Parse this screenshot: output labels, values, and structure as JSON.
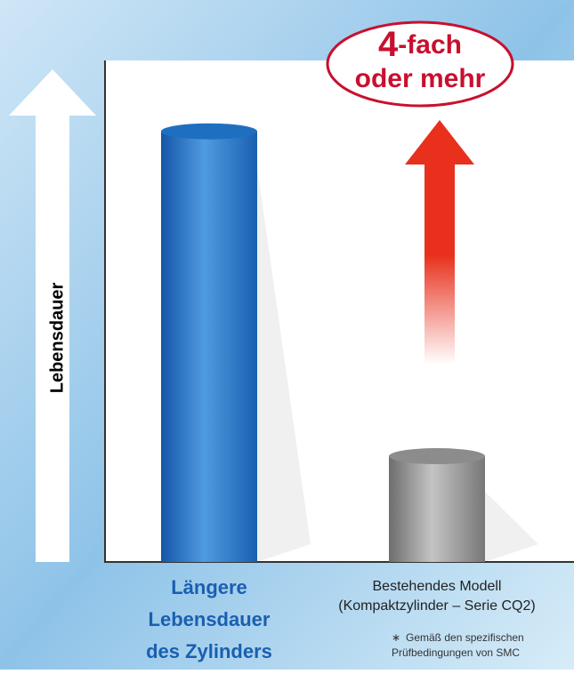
{
  "chart_data": {
    "type": "bar",
    "y_label": "Lebensdauer",
    "categories": [
      [
        "Längere",
        "Lebensdauer",
        "des Zylinders"
      ],
      [
        "Bestehendes Modell",
        "(Kompaktzylinder – Serie CQ2)"
      ]
    ],
    "series": [
      {
        "colors": [
          "#1f6fc0",
          "#8c8c8c"
        ],
        "values": [
          4.07,
          1
        ]
      }
    ],
    "ylim": [
      0,
      4.74
    ],
    "annotation": {
      "number": "4",
      "suffix": "-fach",
      "line2": "oder mehr"
    },
    "footnote": {
      "mark": "∗",
      "lines": [
        "Gemäß den spezifischen",
        "Prüfbedingungen von SMC"
      ]
    }
  }
}
